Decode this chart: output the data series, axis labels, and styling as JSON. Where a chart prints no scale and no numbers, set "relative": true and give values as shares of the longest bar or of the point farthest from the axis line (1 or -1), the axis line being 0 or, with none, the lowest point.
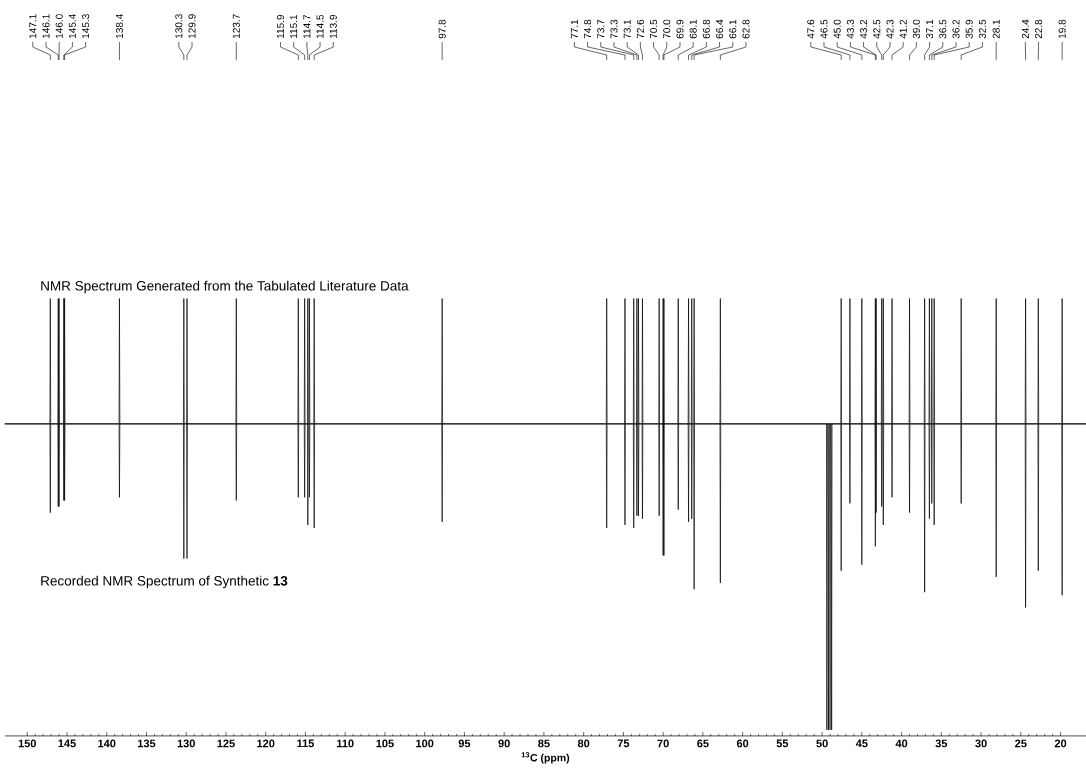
{
  "chart_data": {
    "type": "line",
    "relative": true,
    "xlabel": "$^{13}$C (ppm)",
    "xlim": [
      152.8,
      16.8
    ],
    "xticks": [
      {
        "value": 150,
        "label": "150"
      },
      {
        "value": 145,
        "label": "145"
      },
      {
        "value": 140,
        "label": "140"
      },
      {
        "value": 135,
        "label": "135"
      },
      {
        "value": 130,
        "label": "130"
      },
      {
        "value": 125,
        "label": "125"
      },
      {
        "value": 120,
        "label": "120"
      },
      {
        "value": 115,
        "label": "115"
      },
      {
        "value": 110,
        "label": "110"
      },
      {
        "value": 105,
        "label": "105"
      },
      {
        "value": 100,
        "label": "100"
      },
      {
        "value": 95,
        "label": "95"
      },
      {
        "value": 90,
        "label": "90"
      },
      {
        "value": 85,
        "label": "85"
      },
      {
        "value": 80,
        "label": "80"
      },
      {
        "value": 75,
        "label": "75"
      },
      {
        "value": 70,
        "label": "70"
      },
      {
        "value": 65,
        "label": "65"
      },
      {
        "value": 60,
        "label": "60"
      },
      {
        "value": 55,
        "label": "55"
      },
      {
        "value": 50,
        "label": "50"
      },
      {
        "value": 45,
        "label": "45"
      },
      {
        "value": 40,
        "label": "40"
      },
      {
        "value": 35,
        "label": "35"
      },
      {
        "value": 30,
        "label": "30"
      },
      {
        "value": 25,
        "label": "25"
      },
      {
        "value": 20,
        "label": "20"
      }
    ],
    "series": [
      {
        "name": "NMR Spectrum Generated from the Tabulated Literature Data",
        "color": "#000000",
        "x": [
          152.8,
          147.15,
          147.1,
          147.05,
          146.15,
          146.1,
          146.05,
          146.0,
          145.95,
          145.45,
          145.4,
          145.35,
          145.3,
          145.25,
          138.45,
          138.4,
          138.35,
          130.35,
          130.3,
          130.25,
          129.95,
          129.9,
          129.85,
          123.75,
          123.7,
          123.65,
          115.95,
          115.9,
          115.85,
          115.15,
          115.1,
          115.05,
          114.75,
          114.7,
          114.65,
          114.55,
          114.5,
          114.45,
          113.95,
          113.9,
          113.85,
          97.85,
          97.8,
          97.75,
          77.15,
          77.1,
          77.05,
          74.85,
          74.8,
          74.75,
          73.75,
          73.7,
          73.65,
          73.35,
          73.3,
          73.25,
          73.15,
          73.1,
          73.05,
          72.65,
          72.6,
          72.55,
          70.55,
          70.5,
          70.45,
          70.05,
          70.0,
          69.95,
          69.9,
          69.85,
          68.15,
          68.1,
          68.05,
          66.85,
          66.8,
          66.75,
          66.45,
          66.4,
          66.35,
          66.15,
          66.1,
          66.05,
          62.85,
          62.8,
          62.75,
          47.65,
          47.6,
          47.55,
          46.55,
          46.5,
          46.45,
          45.05,
          45.0,
          44.95,
          43.35,
          43.3,
          43.25,
          43.2,
          43.15,
          42.55,
          42.5,
          42.45,
          42.35,
          42.3,
          42.25,
          41.25,
          41.2,
          41.15,
          39.05,
          39.0,
          38.95,
          37.15,
          37.1,
          37.05,
          36.55,
          36.5,
          36.45,
          36.25,
          36.2,
          36.15,
          35.95,
          35.9,
          35.85,
          32.55,
          32.5,
          32.45,
          28.15,
          28.1,
          28.05,
          24.45,
          24.4,
          24.35,
          22.85,
          22.8,
          22.75,
          19.85,
          19.8,
          19.75,
          16.8
        ],
        "values": [
          0,
          0,
          0.41,
          0,
          0,
          0.41,
          0,
          0.41,
          0,
          0,
          0.41,
          0,
          0.41,
          0,
          0,
          0.41,
          0,
          0,
          0.41,
          0,
          0,
          0.41,
          0,
          0,
          0.41,
          0,
          0,
          0.41,
          0,
          0,
          0.41,
          0,
          0,
          0.41,
          0,
          0,
          0.41,
          0,
          0,
          0.41,
          0,
          0,
          0.41,
          0,
          0,
          0.41,
          0,
          0,
          0.41,
          0,
          0,
          0.41,
          0,
          0,
          0.41,
          0,
          0,
          0.41,
          0,
          0,
          0.41,
          0,
          0,
          0.41,
          0,
          0,
          0.41,
          0,
          0.41,
          0,
          0,
          0.41,
          0,
          0,
          0.41,
          0,
          0,
          0.41,
          0,
          0,
          0.41,
          0,
          0,
          0.41,
          0,
          0,
          0.41,
          0,
          0,
          0.41,
          0,
          0,
          0.41,
          0,
          0,
          0.41,
          0,
          0.41,
          0,
          0,
          0.41,
          0,
          0,
          0.41,
          0,
          0,
          0.41,
          0,
          0,
          0.41,
          0,
          0,
          0.41,
          0,
          0,
          0.41,
          0,
          0,
          0.41,
          0,
          0,
          0.41,
          0,
          0,
          0.41,
          0,
          0,
          0.41,
          0,
          0,
          0.41,
          0,
          0,
          0.41,
          0,
          0,
          0.41,
          0,
          0
        ]
      },
      {
        "name": "Recorded NMR Spectrum of Synthetic **13**",
        "color": "#000000",
        "x": [
          152.8,
          147.15,
          147.1,
          147.05,
          146.15,
          146.1,
          146.05,
          146.0,
          145.95,
          145.45,
          145.4,
          145.35,
          145.3,
          145.25,
          138.45,
          138.4,
          138.35,
          130.35,
          130.3,
          130.25,
          129.95,
          129.9,
          129.85,
          123.75,
          123.7,
          123.65,
          115.95,
          115.9,
          115.85,
          115.15,
          115.1,
          115.05,
          114.75,
          114.7,
          114.65,
          114.55,
          114.5,
          114.45,
          113.95,
          113.9,
          113.85,
          97.85,
          97.8,
          97.75,
          77.15,
          77.1,
          77.05,
          74.85,
          74.8,
          74.75,
          73.75,
          73.7,
          73.65,
          73.35,
          73.3,
          73.25,
          73.15,
          73.1,
          73.05,
          72.65,
          72.6,
          72.55,
          70.55,
          70.5,
          70.45,
          70.05,
          70.0,
          69.95,
          69.9,
          69.85,
          68.15,
          68.1,
          68.05,
          66.85,
          66.8,
          66.75,
          66.45,
          66.4,
          66.35,
          66.15,
          66.1,
          66.05,
          62.85,
          62.8,
          62.75,
          49.45,
          49.4,
          49.35,
          49.25,
          49.2,
          49.15,
          49.05,
          49.0,
          48.95,
          48.85,
          48.8,
          48.75,
          47.65,
          47.6,
          47.55,
          46.55,
          46.5,
          46.45,
          45.05,
          45.0,
          44.95,
          43.35,
          43.3,
          43.25,
          43.2,
          43.15,
          42.55,
          42.5,
          42.45,
          42.35,
          42.3,
          42.25,
          41.25,
          41.2,
          41.15,
          39.05,
          39.0,
          38.95,
          37.15,
          37.1,
          37.05,
          36.55,
          36.5,
          36.45,
          36.25,
          36.2,
          36.15,
          35.95,
          35.9,
          35.85,
          32.55,
          32.5,
          32.45,
          28.15,
          28.1,
          28.05,
          24.45,
          24.4,
          24.35,
          22.85,
          22.8,
          22.75,
          19.85,
          19.8,
          19.75,
          16.8
        ],
        "values": [
          0,
          0,
          -0.29,
          0,
          0,
          -0.27,
          0,
          -0.27,
          0,
          0,
          -0.25,
          0,
          -0.25,
          0,
          0,
          -0.24,
          0,
          0,
          -0.44,
          0,
          0,
          -0.44,
          0,
          0,
          -0.25,
          0,
          0,
          -0.24,
          0,
          0,
          -0.24,
          0,
          0,
          -0.33,
          0,
          0,
          -0.24,
          0,
          0,
          -0.34,
          0,
          0,
          -0.32,
          0,
          0,
          -0.34,
          0,
          0,
          -0.33,
          0,
          0,
          -0.34,
          0,
          0,
          -0.3,
          0,
          0,
          -0.3,
          0,
          0,
          -0.31,
          0,
          0,
          -0.3,
          0,
          0,
          -0.43,
          0,
          -0.43,
          0,
          0,
          -0.28,
          0,
          0,
          -0.32,
          0,
          0,
          -0.31,
          0,
          0,
          -0.54,
          0,
          0,
          -0.52,
          0,
          0,
          -1,
          0,
          0,
          -1,
          0,
          0,
          -1,
          0,
          0,
          -1,
          0,
          0,
          -0.48,
          0,
          0,
          -0.26,
          0,
          0,
          -0.46,
          0,
          0,
          -0.4,
          0,
          -0.29,
          0,
          0,
          -0.27,
          0,
          0,
          -0.33,
          0,
          0,
          -0.24,
          0,
          0,
          -0.29,
          0,
          0,
          -0.55,
          0,
          0,
          -0.31,
          0,
          0,
          -0.26,
          0,
          0,
          -0.33,
          0,
          0,
          -0.26,
          0,
          0,
          -0.5,
          0,
          0,
          -0.6,
          0,
          0,
          -0.48,
          0,
          0,
          -0.56,
          0,
          0
        ]
      }
    ],
    "annotations": [
      {
        "text": "147.1",
        "x": 147.1
      },
      {
        "text": "146.1",
        "x": 146.1
      },
      {
        "text": "146.0",
        "x": 146.0
      },
      {
        "text": "145.4",
        "x": 145.4
      },
      {
        "text": "145.3",
        "x": 145.3
      },
      {
        "text": "138.4",
        "x": 138.4
      },
      {
        "text": "130.3",
        "x": 130.3
      },
      {
        "text": "129.9",
        "x": 129.9
      },
      {
        "text": "123.7",
        "x": 123.7
      },
      {
        "text": "115.9",
        "x": 115.9
      },
      {
        "text": "115.1",
        "x": 115.1
      },
      {
        "text": "114.7",
        "x": 114.7
      },
      {
        "text": "114.5",
        "x": 114.5
      },
      {
        "text": "113.9",
        "x": 113.9
      },
      {
        "text": "97.8",
        "x": 97.8
      },
      {
        "text": "77.1",
        "x": 77.1
      },
      {
        "text": "74.8",
        "x": 74.8
      },
      {
        "text": "73.7",
        "x": 73.7
      },
      {
        "text": "73.3",
        "x": 73.3
      },
      {
        "text": "73.1",
        "x": 73.1
      },
      {
        "text": "72.6",
        "x": 72.6
      },
      {
        "text": "70.5",
        "x": 70.5
      },
      {
        "text": "70.0",
        "x": 70.0
      },
      {
        "text": "69.9",
        "x": 69.9
      },
      {
        "text": "68.1",
        "x": 68.1
      },
      {
        "text": "66.8",
        "x": 66.8
      },
      {
        "text": "66.4",
        "x": 66.4
      },
      {
        "text": "66.1",
        "x": 66.1
      },
      {
        "text": "62.8",
        "x": 62.8
      },
      {
        "text": "47.6",
        "x": 47.6
      },
      {
        "text": "46.5",
        "x": 46.5
      },
      {
        "text": "45.0",
        "x": 45.0
      },
      {
        "text": "43.3",
        "x": 43.3
      },
      {
        "text": "43.2",
        "x": 43.2
      },
      {
        "text": "42.5",
        "x": 42.5
      },
      {
        "text": "42.3",
        "x": 42.3
      },
      {
        "text": "41.2",
        "x": 41.2
      },
      {
        "text": "39.0",
        "x": 39.0
      },
      {
        "text": "37.1",
        "x": 37.1
      },
      {
        "text": "36.5",
        "x": 36.5
      },
      {
        "text": "36.2",
        "x": 36.2
      },
      {
        "text": "35.9",
        "x": 35.9
      },
      {
        "text": "32.5",
        "x": 32.5
      },
      {
        "text": "28.1",
        "x": 28.1
      },
      {
        "text": "24.4",
        "x": 24.4
      },
      {
        "text": "22.8",
        "x": 22.8
      },
      {
        "text": "19.8",
        "x": 19.8
      }
    ]
  }
}
